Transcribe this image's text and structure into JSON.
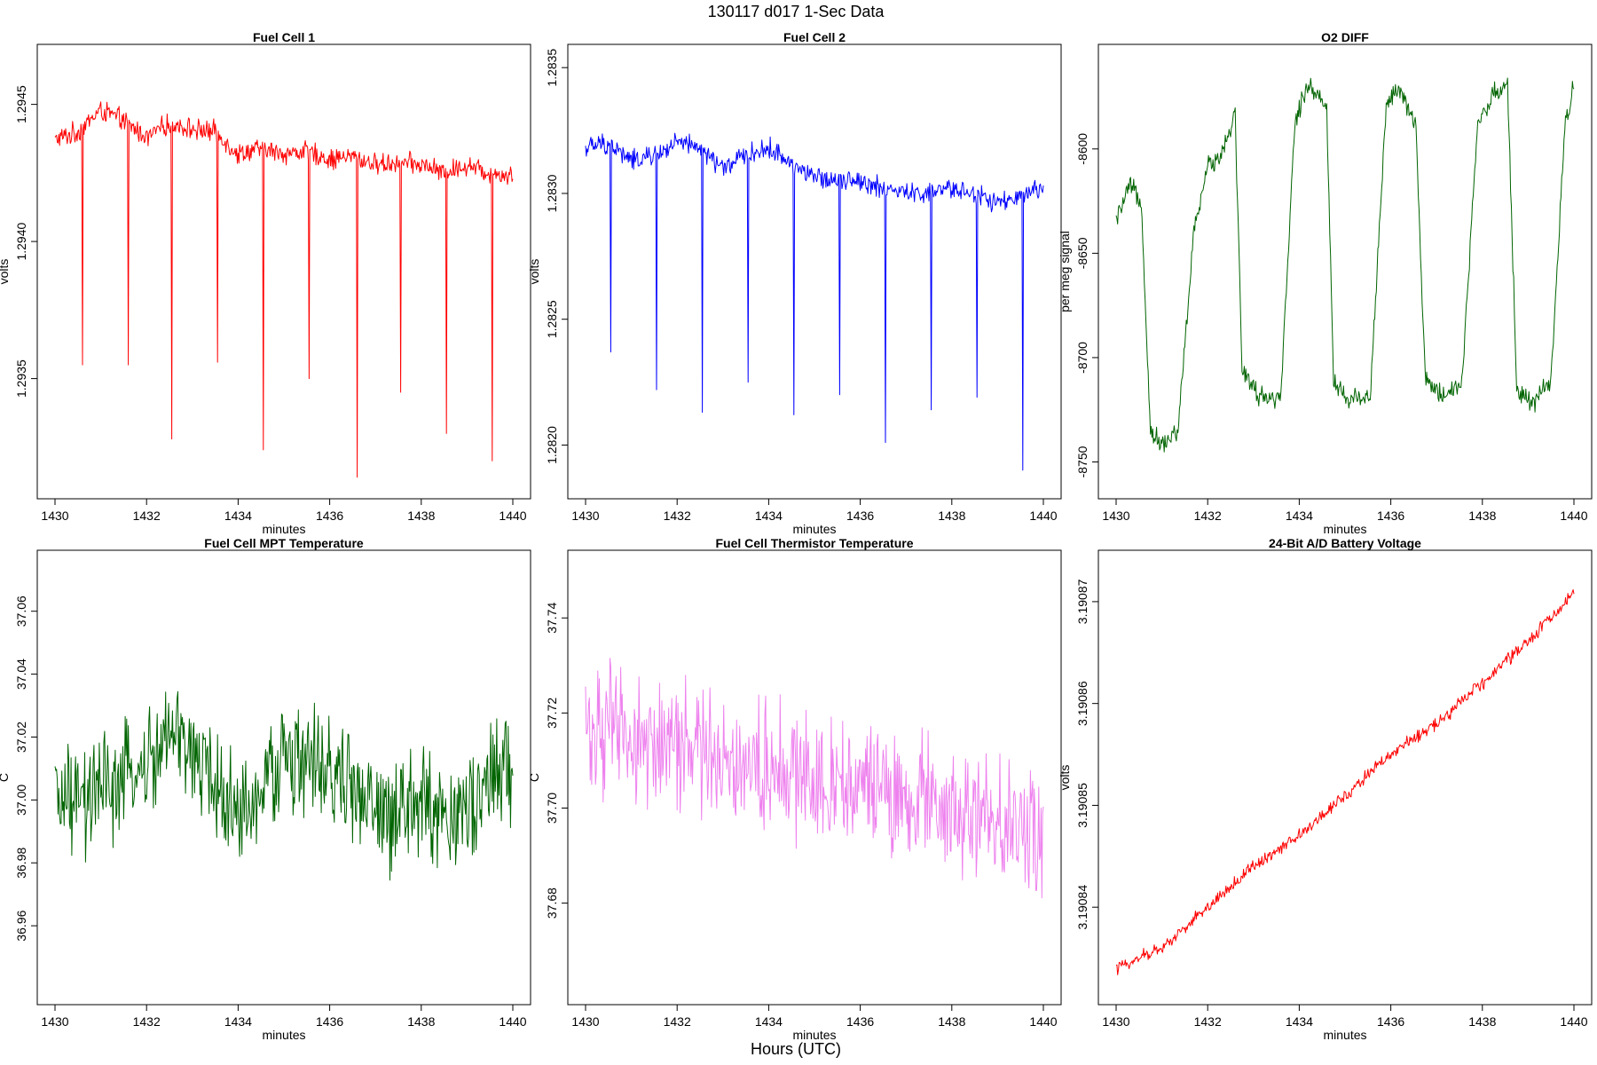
{
  "main_title": "130117   d017   1-Sec Data",
  "footer_label": "Hours (UTC)",
  "chart_data": [
    {
      "type": "line",
      "title": "Fuel Cell 1",
      "xlabel": "minutes",
      "ylabel": "volts",
      "color": "#ff0000",
      "xlim": [
        1430,
        1440
      ],
      "ylim": [
        1.29312,
        1.29468
      ],
      "x_ticks": [
        1430,
        1432,
        1434,
        1436,
        1438,
        1440
      ],
      "y_ticks": [
        1.2935,
        1.294,
        1.2945
      ],
      "y_tick_labels": [
        "1.2935",
        "1.2940",
        "1.2945"
      ],
      "series": [
        {
          "name": "Fuel Cell 1",
          "x": [
            1430,
            1430.5,
            1431,
            1431.5,
            1432,
            1432.5,
            1433,
            1433.5,
            1434,
            1434.5,
            1435,
            1435.5,
            1436,
            1436.5,
            1437,
            1437.5,
            1438,
            1438.5,
            1439,
            1439.5,
            1440
          ],
          "values": [
            1.29437,
            1.2944,
            1.29448,
            1.29444,
            1.29438,
            1.29443,
            1.29441,
            1.2944,
            1.29432,
            1.29434,
            1.29432,
            1.29433,
            1.2943,
            1.29431,
            1.29428,
            1.29429,
            1.29428,
            1.29425,
            1.29428,
            1.29425,
            1.29424
          ],
          "spikes": [
            [
              1430.6,
              1.29355
            ],
            [
              1431.6,
              1.29355
            ],
            [
              1432.55,
              1.29328
            ],
            [
              1433.55,
              1.29356
            ],
            [
              1434.55,
              1.29324
            ],
            [
              1435.55,
              1.2935
            ],
            [
              1436.6,
              1.29314
            ],
            [
              1437.55,
              1.29345
            ],
            [
              1438.55,
              1.2933
            ],
            [
              1439.55,
              1.2932
            ]
          ]
        }
      ]
    },
    {
      "type": "line",
      "title": "Fuel Cell 2",
      "xlabel": "minutes",
      "ylabel": "volts",
      "color": "#0000ff",
      "xlim": [
        1430,
        1440
      ],
      "ylim": [
        1.28185,
        1.28355
      ],
      "x_ticks": [
        1430,
        1432,
        1434,
        1436,
        1438,
        1440
      ],
      "y_ticks": [
        1.282,
        1.2825,
        1.283,
        1.2835
      ],
      "y_tick_labels": [
        "1.2820",
        "1.2825",
        "1.2830",
        "1.2835"
      ],
      "series": [
        {
          "name": "Fuel Cell 2",
          "x": [
            1430,
            1430.5,
            1431,
            1431.5,
            1432,
            1432.5,
            1433,
            1433.5,
            1434,
            1434.5,
            1435,
            1435.5,
            1436,
            1436.5,
            1437,
            1437.5,
            1438,
            1438.5,
            1439,
            1439.5,
            1440
          ],
          "values": [
            1.28318,
            1.2832,
            1.28313,
            1.28315,
            1.2832,
            1.28318,
            1.2831,
            1.28315,
            1.28318,
            1.28312,
            1.28306,
            1.28306,
            1.28305,
            1.28302,
            1.283,
            1.283,
            1.28302,
            1.283,
            1.28296,
            1.28298,
            1.28302
          ],
          "spikes": [
            [
              1430.55,
              1.28237
            ],
            [
              1431.55,
              1.28222
            ],
            [
              1432.55,
              1.28213
            ],
            [
              1433.55,
              1.28225
            ],
            [
              1434.55,
              1.28212
            ],
            [
              1435.55,
              1.2822
            ],
            [
              1436.55,
              1.28201
            ],
            [
              1437.55,
              1.28214
            ],
            [
              1438.55,
              1.28219
            ],
            [
              1439.55,
              1.2819
            ]
          ]
        }
      ]
    },
    {
      "type": "line",
      "title": "O2 DIFF",
      "xlabel": "minutes",
      "ylabel": "per meg signal",
      "color": "#006400",
      "xlim": [
        1430,
        1440
      ],
      "ylim": [
        -8760,
        -8555
      ],
      "x_ticks": [
        1430,
        1432,
        1434,
        1436,
        1438,
        1440
      ],
      "y_ticks": [
        -8750,
        -8700,
        -8650,
        -8600
      ],
      "y_tick_labels": [
        "-8750",
        "-8700",
        "-8650",
        "-8600"
      ],
      "series": [
        {
          "name": "O2 DIFF",
          "x": [
            1430,
            1430.3,
            1430.55,
            1430.75,
            1431,
            1431.35,
            1431.7,
            1432,
            1432.3,
            1432.6,
            1432.75,
            1433.1,
            1433.6,
            1433.9,
            1434.2,
            1434.6,
            1434.75,
            1435.1,
            1435.55,
            1435.9,
            1436.2,
            1436.55,
            1436.75,
            1437.1,
            1437.55,
            1437.9,
            1438.2,
            1438.55,
            1438.75,
            1439.1,
            1439.5,
            1439.8,
            1440
          ],
          "values": [
            -8635,
            -8618,
            -8625,
            -8735,
            -8742,
            -8735,
            -8640,
            -8608,
            -8602,
            -8583,
            -8705,
            -8718,
            -8720,
            -8588,
            -8568,
            -8580,
            -8712,
            -8720,
            -8718,
            -8578,
            -8572,
            -8590,
            -8710,
            -8718,
            -8712,
            -8588,
            -8575,
            -8568,
            -8715,
            -8722,
            -8712,
            -8590,
            -8568
          ]
        }
      ]
    },
    {
      "type": "line",
      "title": "Fuel Cell MPT Temperature",
      "xlabel": "minutes",
      "ylabel": "C",
      "color": "#006400",
      "xlim": [
        1430,
        1440
      ],
      "ylim": [
        36.94,
        37.076
      ],
      "x_ticks": [
        1430,
        1432,
        1434,
        1436,
        1438,
        1440
      ],
      "y_ticks": [
        36.96,
        36.98,
        37.0,
        37.02,
        37.04,
        37.06
      ],
      "y_tick_labels": [
        "36.96",
        "36.98",
        "37.00",
        "37.02",
        "37.04",
        "37.06"
      ],
      "series": [
        {
          "name": "MPT Temperature",
          "x": [
            1430,
            1430.5,
            1431,
            1431.5,
            1432,
            1432.5,
            1433,
            1433.5,
            1434,
            1434.5,
            1435,
            1435.5,
            1436,
            1436.5,
            1437,
            1437.5,
            1438,
            1438.5,
            1439,
            1439.5,
            1440
          ],
          "values": [
            37.0,
            36.998,
            37.002,
            37.006,
            37.01,
            37.02,
            37.016,
            37.005,
            36.995,
            37.0,
            37.015,
            37.012,
            37.008,
            37.004,
            36.995,
            36.993,
            37.0,
            36.995,
            36.997,
            37.005,
            37.01
          ],
          "spread": 0.022
        }
      ]
    },
    {
      "type": "line",
      "title": "Fuel Cell Thermistor Temperature",
      "xlabel": "minutes",
      "ylabel": "C",
      "color": "#ee82ee",
      "xlim": [
        1430,
        1440
      ],
      "ylim": [
        37.662,
        37.752
      ],
      "x_ticks": [
        1430,
        1432,
        1434,
        1436,
        1438,
        1440
      ],
      "y_ticks": [
        37.68,
        37.7,
        37.72,
        37.74
      ],
      "y_tick_labels": [
        "37.68",
        "37.70",
        "37.72",
        "37.74"
      ],
      "series": [
        {
          "name": "Thermistor Temperature",
          "x": [
            1430,
            1430.5,
            1431,
            1431.5,
            1432,
            1432.5,
            1433,
            1433.5,
            1434,
            1434.5,
            1435,
            1435.5,
            1436,
            1436.5,
            1437,
            1437.5,
            1438,
            1438.5,
            1439,
            1439.5,
            1440
          ],
          "values": [
            37.718,
            37.716,
            37.714,
            37.713,
            37.713,
            37.712,
            37.711,
            37.71,
            37.709,
            37.708,
            37.706,
            37.706,
            37.704,
            37.703,
            37.701,
            37.701,
            37.699,
            37.698,
            37.697,
            37.696,
            37.696
          ],
          "spread": 0.017
        }
      ]
    },
    {
      "type": "line",
      "title": "24-Bit A/D Battery Voltage",
      "xlabel": "minutes",
      "ylabel": "volts",
      "color": "#ff0000",
      "xlim": [
        1430,
        1440
      ],
      "ylim": [
        3.190832,
        3.190874
      ],
      "x_ticks": [
        1430,
        1432,
        1434,
        1436,
        1438,
        1440
      ],
      "y_ticks": [
        3.19084,
        3.19085,
        3.19086,
        3.19087
      ],
      "y_tick_labels": [
        "3.19084",
        "3.19085",
        "3.19086",
        "3.19087"
      ],
      "series": [
        {
          "name": "Battery Voltage",
          "x": [
            1430,
            1431,
            1432,
            1433,
            1434,
            1435,
            1436,
            1437,
            1438,
            1439,
            1440
          ],
          "values": [
            3.190834,
            3.190836,
            3.19084,
            3.190844,
            3.190847,
            3.190851,
            3.190855,
            3.190858,
            3.190862,
            3.190866,
            3.190871
          ],
          "spread": 8e-07
        }
      ]
    }
  ]
}
